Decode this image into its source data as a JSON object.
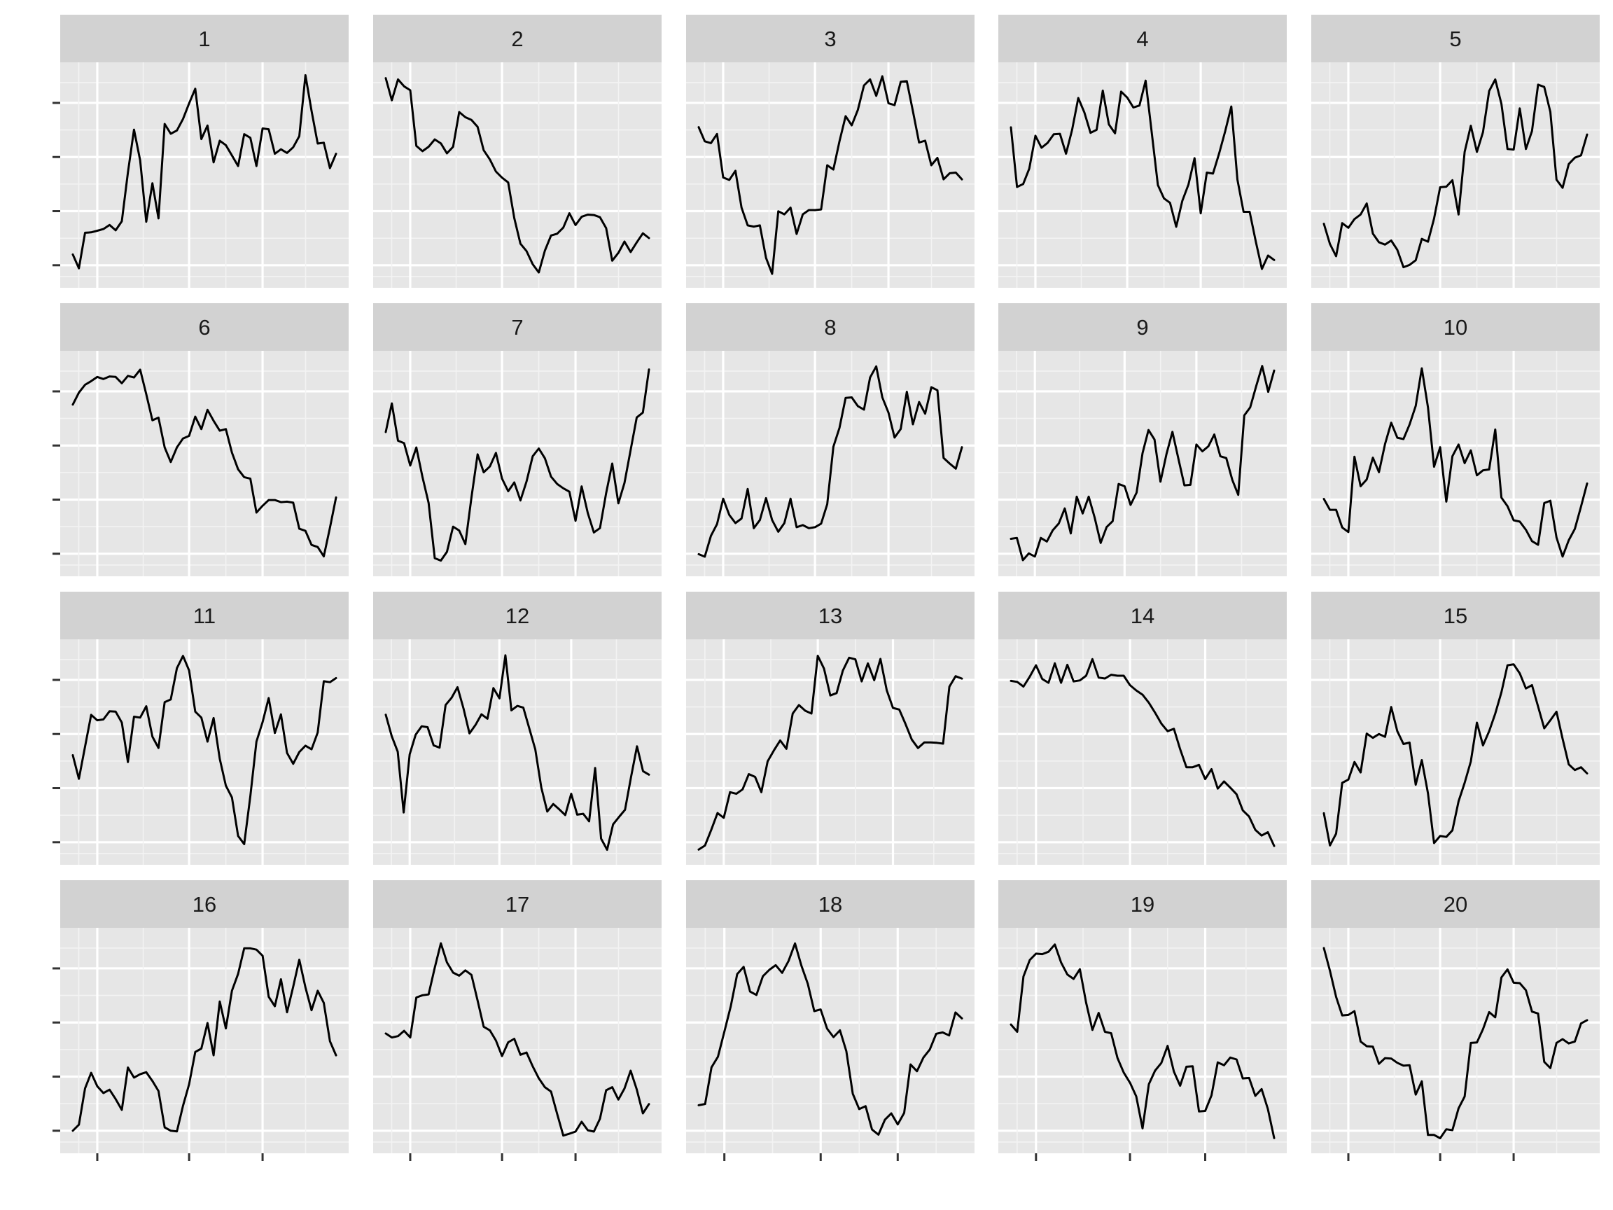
{
  "chart_data": {
    "type": "line",
    "layout": "facet-grid-4x5",
    "title": "",
    "xlabel": "",
    "ylabel": "",
    "grid": true,
    "x_ticks": [
      5,
      20,
      32
    ],
    "panels": [
      {
        "label": "1",
        "values": [
          52.1,
          48.7,
          57.4,
          57.5,
          57.9,
          58.3,
          59.3,
          58.0,
          60.2,
          72.1,
          82.6,
          75.1,
          60.1,
          69.5,
          60.9,
          84.0,
          81.6,
          82.4,
          85.2,
          89.0,
          92.6,
          80.3,
          83.6,
          74.6,
          79.9,
          78.8,
          76.3,
          73.7,
          81.5,
          80.6,
          73.7,
          82.9,
          82.7,
          76.7,
          77.8,
          76.9,
          78.3,
          81.0,
          95.9,
          87.2,
          79.2,
          79.4,
          73.2,
          76.7
        ],
        "ylim": [
          46,
          97
        ]
      },
      {
        "label": "2",
        "values": [
          89.3,
          84.2,
          89.0,
          87.4,
          86.5,
          73.7,
          72.5,
          73.5,
          75.2,
          74.3,
          72.0,
          73.5,
          81.5,
          80.3,
          79.7,
          78.1,
          72.7,
          70.6,
          67.8,
          66.4,
          65.3,
          57.1,
          51.2,
          49.5,
          46.5,
          44.6,
          49.6,
          53.1,
          53.5,
          54.9,
          58.2,
          55.5,
          57.4,
          57.9,
          57.8,
          57.3,
          54.8,
          47.3,
          49.1,
          51.7,
          49.3,
          51.5,
          53.6,
          52.5
        ],
        "ylim": [
          43,
          91
        ]
      },
      {
        "label": "3",
        "values": [
          75.8,
          73.5,
          73.2,
          74.7,
          67.6,
          67.2,
          68.7,
          62.7,
          59.8,
          59.6,
          59.8,
          54.5,
          51.9,
          62.1,
          61.6,
          62.7,
          58.4,
          61.6,
          62.3,
          62.3,
          62.4,
          69.6,
          68.9,
          73.5,
          77.6,
          76.1,
          78.6,
          82.6,
          83.6,
          80.9,
          84.1,
          79.7,
          79.4,
          83.2,
          83.3,
          78.4,
          73.3,
          73.6,
          69.6,
          70.8,
          67.3,
          68.3,
          68.4,
          67.3
        ],
        "ylim": [
          51,
          85
        ]
      },
      {
        "label": "4",
        "values": [
          72.6,
          60.6,
          61.2,
          64.3,
          70.9,
          68.5,
          69.5,
          71.2,
          71.3,
          67.3,
          72.1,
          78.5,
          75.6,
          71.5,
          72.1,
          80.0,
          73.2,
          71.4,
          79.8,
          78.6,
          76.6,
          77.0,
          82.0,
          71.6,
          61.0,
          58.3,
          57.4,
          52.6,
          57.8,
          61.1,
          66.4,
          55.3,
          63.5,
          63.3,
          67.3,
          71.8,
          76.8,
          62.1,
          55.6,
          55.6,
          49.6,
          44.1,
          46.8,
          45.9
        ],
        "ylim": [
          42,
          84
        ]
      },
      {
        "label": "5",
        "values": [
          52.6,
          49.1,
          47.0,
          52.7,
          51.9,
          53.4,
          54.2,
          56.1,
          50.9,
          49.4,
          49.0,
          49.7,
          48.1,
          45.1,
          45.5,
          46.3,
          50.0,
          49.5,
          53.5,
          58.9,
          59.0,
          60.1,
          54.2,
          65.0,
          69.5,
          65.0,
          68.4,
          75.5,
          77.5,
          73.3,
          65.5,
          65.4,
          72.5,
          65.5,
          68.6,
          76.6,
          76.2,
          71.9,
          60.2,
          58.8,
          62.9,
          64.0,
          64.4,
          68.0
        ],
        "ylim": [
          43,
          79
        ]
      },
      {
        "label": "6",
        "values": [
          87.3,
          89.6,
          91.1,
          91.8,
          92.6,
          92.2,
          92.7,
          92.6,
          91.4,
          92.8,
          92.5,
          94.0,
          89.3,
          84.3,
          84.8,
          79.1,
          76.3,
          79.1,
          80.8,
          81.3,
          85.0,
          82.6,
          86.3,
          84.2,
          82.3,
          82.6,
          78.1,
          74.9,
          73.4,
          73.1,
          66.6,
          67.9,
          69.0,
          69.0,
          68.6,
          68.7,
          68.5,
          63.5,
          63.1,
          60.4,
          60.0,
          58.2,
          63.7,
          69.5
        ],
        "ylim": [
          56,
          96
        ]
      },
      {
        "label": "7",
        "values": [
          71.0,
          76.9,
          69.2,
          68.7,
          64.1,
          67.8,
          61.7,
          56.4,
          45.0,
          44.5,
          46.3,
          51.5,
          50.7,
          47.9,
          57.5,
          66.4,
          62.7,
          63.9,
          66.7,
          61.4,
          58.8,
          60.6,
          56.9,
          60.8,
          66.0,
          67.6,
          65.6,
          61.8,
          60.3,
          59.4,
          58.7,
          52.7,
          59.8,
          54.3,
          50.3,
          51.2,
          58.4,
          64.5,
          56.3,
          60.5,
          67.3,
          74.0,
          75.0,
          83.9
        ],
        "ylim": [
          43,
          86
        ]
      },
      {
        "label": "8",
        "values": [
          52.7,
          52.2,
          56.3,
          58.6,
          63.6,
          60.4,
          58.8,
          59.7,
          65.5,
          57.8,
          59.4,
          63.7,
          59.4,
          57.1,
          58.8,
          63.6,
          58.0,
          58.4,
          57.8,
          58.0,
          58.7,
          62.5,
          73.8,
          77.5,
          83.4,
          83.5,
          81.8,
          81.1,
          87.4,
          89.6,
          83.5,
          80.5,
          75.6,
          77.3,
          84.6,
          78.2,
          82.6,
          80.3,
          85.5,
          84.9,
          71.6,
          70.5,
          69.5,
          73.7
        ],
        "ylim": [
          50,
          91
        ]
      },
      {
        "label": "9",
        "values": [
          52.4,
          52.6,
          47.7,
          49.2,
          48.5,
          52.6,
          51.8,
          54.3,
          55.8,
          59.1,
          53.6,
          61.7,
          58.0,
          61.7,
          57.1,
          51.5,
          55.0,
          56.3,
          64.5,
          64.0,
          59.9,
          62.6,
          71.3,
          76.4,
          74.3,
          65.0,
          71.1,
          76.0,
          70.0,
          64.2,
          64.3,
          73.2,
          71.7,
          72.8,
          75.4,
          70.6,
          70.2,
          65.4,
          62.1,
          79.6,
          81.4,
          86.1,
          90.5,
          84.8,
          89.5
        ],
        "ylim": [
          46,
          92
        ]
      },
      {
        "label": "10",
        "values": [
          61.2,
          58.8,
          58.8,
          54.9,
          53.9,
          70.5,
          64.0,
          65.5,
          70.3,
          67.1,
          73.3,
          78.0,
          74.7,
          74.4,
          77.6,
          81.7,
          90.0,
          81.4,
          68.3,
          72.6,
          60.6,
          70.6,
          73.2,
          69.1,
          71.9,
          66.4,
          67.5,
          67.7,
          76.5,
          61.5,
          59.6,
          56.5,
          56.2,
          54.4,
          51.9,
          51.1,
          60.3,
          60.8,
          52.7,
          48.5,
          52.1,
          54.6,
          59.5,
          64.6
        ],
        "ylim": [
          46,
          92
        ]
      },
      {
        "label": "11",
        "values": [
          73.3,
          68.1,
          75.2,
          82.2,
          81.0,
          81.2,
          83.0,
          82.9,
          80.5,
          71.8,
          81.8,
          81.6,
          84.1,
          77.4,
          74.9,
          85.0,
          85.6,
          92.5,
          95.2,
          92.0,
          82.9,
          81.6,
          76.3,
          81.5,
          72.5,
          66.6,
          64.0,
          55.5,
          53.7,
          64.3,
          76.3,
          80.6,
          85.9,
          78.2,
          82.3,
          73.8,
          71.4,
          74.0,
          75.4,
          74.6,
          78.3,
          89.6,
          89.4,
          90.3
        ],
        "ylim": [
          51,
          97
        ]
      },
      {
        "label": "12",
        "values": [
          73.9,
          69.1,
          65.6,
          51.9,
          65.0,
          69.4,
          71.3,
          71.1,
          67.0,
          66.5,
          76.1,
          77.7,
          80.1,
          75.3,
          69.7,
          71.6,
          74.0,
          73.0,
          79.9,
          77.6,
          87.3,
          74.9,
          75.9,
          75.5,
          70.8,
          66.1,
          57.5,
          52.1,
          53.8,
          52.6,
          51.3,
          56.1,
          51.4,
          51.6,
          49.9,
          61.9,
          46.0,
          43.5,
          49.2,
          50.9,
          52.5,
          59.9,
          66.8,
          61.2,
          60.4
        ],
        "ylim": [
          42,
          89
        ]
      },
      {
        "label": "13",
        "values": [
          44.7,
          45.7,
          49.6,
          53.8,
          52.6,
          59.0,
          58.6,
          59.7,
          63.5,
          62.8,
          59.0,
          66.7,
          69.4,
          71.9,
          69.8,
          78.6,
          80.7,
          79.3,
          78.6,
          93.0,
          89.8,
          83.1,
          83.7,
          89.3,
          92.5,
          92.1,
          86.6,
          91.1,
          86.9,
          92.2,
          84.4,
          80.0,
          79.6,
          76.0,
          72.1,
          70.0,
          71.4,
          71.4,
          71.3,
          71.1,
          85.3,
          87.9,
          87.3
        ],
        "ylim": [
          43,
          95
        ]
      },
      {
        "label": "14",
        "values": [
          84.0,
          83.8,
          82.8,
          84.9,
          87.3,
          84.4,
          83.6,
          87.7,
          83.6,
          87.4,
          83.9,
          84.1,
          85.1,
          88.6,
          84.7,
          84.5,
          85.3,
          85.1,
          85.1,
          83.1,
          82.0,
          81.1,
          79.4,
          77.3,
          75.0,
          73.4,
          73.9,
          69.6,
          65.8,
          65.8,
          66.3,
          63.3,
          65.4,
          61.3,
          62.8,
          61.5,
          60.1,
          56.7,
          55.4,
          52.6,
          51.4,
          52.1,
          49.2
        ],
        "ylim": [
          47,
          91
        ]
      },
      {
        "label": "15",
        "values": [
          56.1,
          49.3,
          51.8,
          62.5,
          63.2,
          66.9,
          64.7,
          72.9,
          72.0,
          72.8,
          72.2,
          78.5,
          73.4,
          70.7,
          71.0,
          62.1,
          67.3,
          60.3,
          49.8,
          51.3,
          51.1,
          52.5,
          58.6,
          62.5,
          67.0,
          75.2,
          70.4,
          73.4,
          77.1,
          81.6,
          87.3,
          87.5,
          85.6,
          82.4,
          83.1,
          78.6,
          74.0,
          75.7,
          77.5,
          71.8,
          66.4,
          65.2,
          65.8,
          64.5
        ],
        "ylim": [
          47,
          91
        ]
      },
      {
        "label": "16",
        "values": [
          52.1,
          53.0,
          58.4,
          60.7,
          58.7,
          57.7,
          58.2,
          56.8,
          55.2,
          61.5,
          60.0,
          60.5,
          60.8,
          59.5,
          58.0,
          52.6,
          52.1,
          52.0,
          55.8,
          59.0,
          63.8,
          64.3,
          68.1,
          63.3,
          71.3,
          67.3,
          72.9,
          75.4,
          79.2,
          79.2,
          79.0,
          78.1,
          72.0,
          70.6,
          74.6,
          69.7,
          73.5,
          77.5,
          73.4,
          70.0,
          72.9,
          71.1,
          65.4,
          63.3
        ],
        "ylim": [
          50,
          81
        ]
      },
      {
        "label": "17",
        "values": [
          66.1,
          65.2,
          65.5,
          66.7,
          65.2,
          74.2,
          74.7,
          74.9,
          80.9,
          86.4,
          82.1,
          79.8,
          79.1,
          80.3,
          79.3,
          73.5,
          67.6,
          66.8,
          64.5,
          61.0,
          64.1,
          64.9,
          61.3,
          61.8,
          58.7,
          56.0,
          54.0,
          53.0,
          48.0,
          43.1,
          43.5,
          44.0,
          46.2,
          44.3,
          44.0,
          46.9,
          53.3,
          54.0,
          51.2,
          53.7,
          57.7,
          53.5,
          48.1,
          50.2
        ],
        "ylim": [
          41,
          88
        ]
      },
      {
        "label": "18",
        "values": [
          57.3,
          57.6,
          66.2,
          68.7,
          74.6,
          80.6,
          88.1,
          89.8,
          84.0,
          83.2,
          87.6,
          89.1,
          90.2,
          88.4,
          91.2,
          95.3,
          90.1,
          85.8,
          79.4,
          79.8,
          75.3,
          73.3,
          74.9,
          70.0,
          60.0,
          56.4,
          57.1,
          51.6,
          50.4,
          53.9,
          55.4,
          52.8,
          55.5,
          66.9,
          65.3,
          68.5,
          70.4,
          74.1,
          74.4,
          73.7,
          79.1,
          77.7
        ],
        "ylim": [
          48,
          97
        ]
      },
      {
        "label": "19",
        "values": [
          74.8,
          73.3,
          84.7,
          88.1,
          89.4,
          89.3,
          89.8,
          91.3,
          87.6,
          85.1,
          84.2,
          86.2,
          79.3,
          73.7,
          77.2,
          73.3,
          73.0,
          67.9,
          64.9,
          62.8,
          60.0,
          53.4,
          62.5,
          65.3,
          66.9,
          70.4,
          65.1,
          62.2,
          66.1,
          66.2,
          56.9,
          57.0,
          60.2,
          67.0,
          66.4,
          68.0,
          67.6,
          63.7,
          63.8,
          60.1,
          61.5,
          57.4,
          51.4
        ],
        "ylim": [
          50,
          93
        ]
      },
      {
        "label": "20",
        "values": [
          88.5,
          83.7,
          78.2,
          74.3,
          74.4,
          75.2,
          68.8,
          67.8,
          67.7,
          64.1,
          65.3,
          65.2,
          64.3,
          63.7,
          63.8,
          57.6,
          60.4,
          49.1,
          49.1,
          48.4,
          50.3,
          50.1,
          54.7,
          57.2,
          68.5,
          68.6,
          71.4,
          75.0,
          73.9,
          82.3,
          84.0,
          81.2,
          81.1,
          79.6,
          75.1,
          74.7,
          64.5,
          63.2,
          68.5,
          69.3,
          68.4,
          68.8,
          72.6,
          73.3
        ],
        "ylim": [
          47,
          91
        ]
      }
    ]
  }
}
